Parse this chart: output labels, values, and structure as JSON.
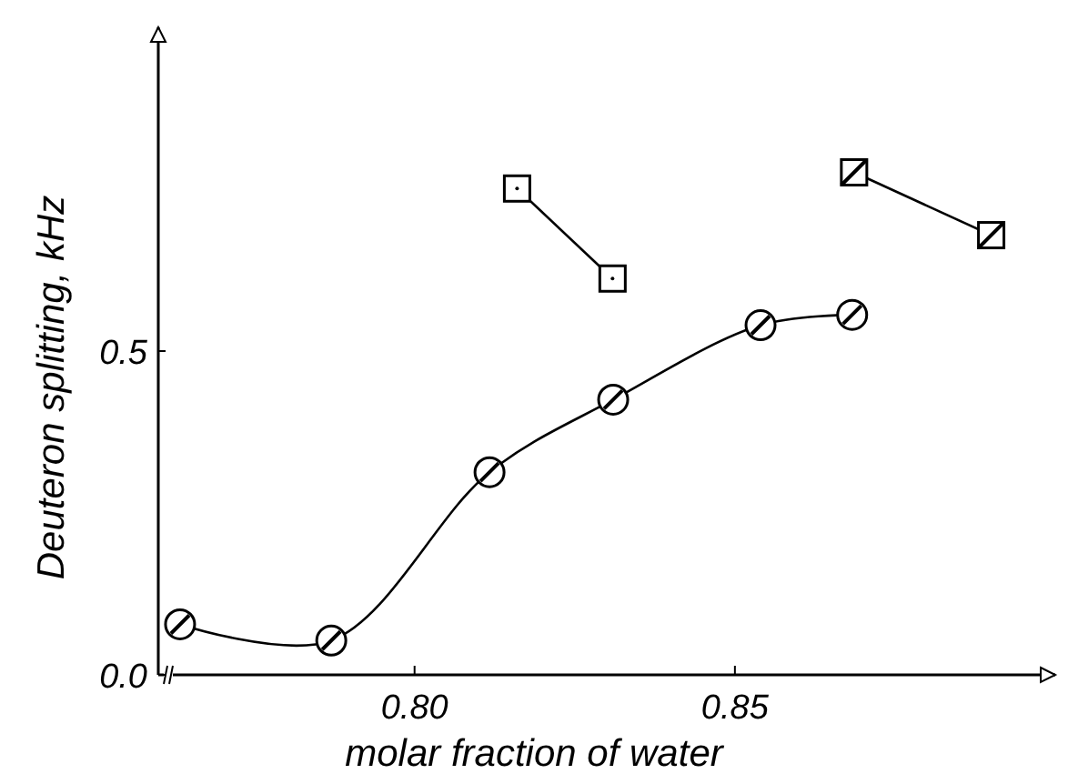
{
  "chart_data": {
    "type": "line",
    "xlabel": "molar fraction of water",
    "ylabel": "Deuteron splitting, kHz",
    "xlim": [
      0.76,
      0.9
    ],
    "xticks": [
      {
        "value": 0.8,
        "label": "0.80"
      },
      {
        "value": 0.85,
        "label": "0.85"
      }
    ],
    "ylim": [
      0,
      1.0
    ],
    "yticks": [
      {
        "value": 0,
        "label": "0.0"
      },
      {
        "value": 0.5,
        "label": "0.5"
      }
    ],
    "grid": false,
    "line_style": "solid",
    "series": [
      {
        "color": "#000000",
        "marker": "circle",
        "x": [
          0.7634,
          0.787,
          0.8117,
          0.831,
          0.854,
          0.8683
        ],
        "values": [
          0.078,
          0.053,
          0.313,
          0.425,
          0.54,
          0.556
        ]
      },
      {
        "color": "#000000",
        "marker": "square",
        "x": [
          0.816,
          0.8309
        ],
        "values": [
          0.751,
          0.612
        ]
      },
      {
        "color": "#000000",
        "marker": "square",
        "x": [
          0.8686,
          0.89
        ],
        "values": [
          0.776,
          0.679
        ]
      }
    ]
  }
}
